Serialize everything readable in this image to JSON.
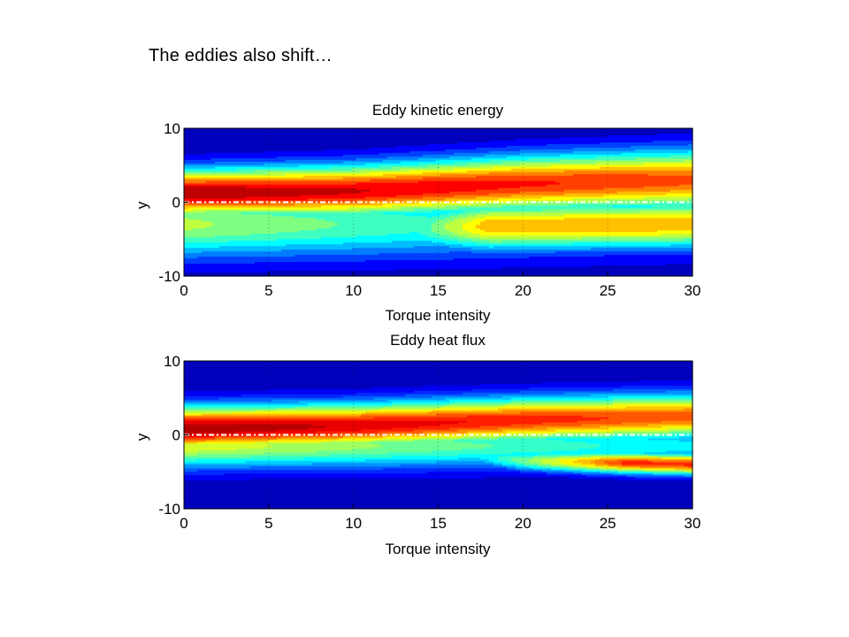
{
  "slide": {
    "title": "The eddies also shift…"
  },
  "colormap": "jet",
  "colors": {
    "centerline": "#ffffff"
  },
  "chart_data": [
    {
      "type": "contour",
      "title": "Eddy kinetic energy",
      "xlabel": "Torque intensity",
      "ylabel": "y",
      "xlim": [
        0,
        30
      ],
      "ylim": [
        -10,
        10
      ],
      "xticks": [
        0,
        5,
        10,
        15,
        20,
        25,
        30
      ],
      "yticks": [
        -10,
        0,
        10
      ],
      "grid": true,
      "centerline_y": 0,
      "levels": 15,
      "field": {
        "description_peak_y": "peak near y=1 at low torque, broadening toward y=3 at high torque",
        "peak_y_at_x": [
          [
            0,
            1.2
          ],
          [
            10,
            1.5
          ],
          [
            20,
            2.5
          ],
          [
            30,
            3.0
          ]
        ],
        "secondary_lobe_y_at_x": [
          [
            12,
            -3.5
          ],
          [
            20,
            -3.2
          ],
          [
            30,
            -3.0
          ]
        ]
      }
    },
    {
      "type": "contour",
      "title": "Eddy heat flux",
      "xlabel": "Torque intensity",
      "ylabel": "y",
      "xlim": [
        0,
        30
      ],
      "ylim": [
        -10,
        10
      ],
      "xticks": [
        0,
        5,
        10,
        15,
        20,
        25,
        30
      ],
      "yticks": [
        -10,
        0,
        10
      ],
      "grid": true,
      "centerline_y": 0,
      "levels": 18,
      "field": {
        "peak_y_at_x": [
          [
            0,
            0.8
          ],
          [
            10,
            1.2
          ],
          [
            20,
            2.0
          ],
          [
            30,
            2.5
          ]
        ],
        "secondary_lobe_y_at_x": [
          [
            15,
            -2.5
          ],
          [
            20,
            -3.5
          ],
          [
            30,
            -4.0
          ]
        ]
      }
    }
  ]
}
